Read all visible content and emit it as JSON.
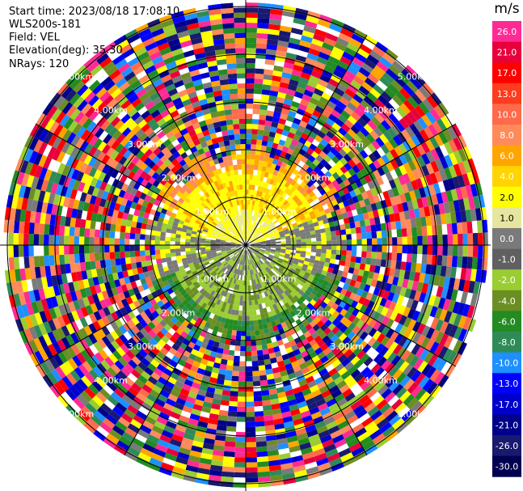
{
  "header": {
    "start_time": "Start time: 2023/08/18 17:08:10",
    "instrument": "WLS200s-181",
    "field": "Field: VEL",
    "elevation": "Elevation(deg): 35.30",
    "nrays": "NRays: 120"
  },
  "colorbar": {
    "title": "m/s",
    "ticks": [
      "26.0",
      "21.0",
      "17.0",
      "13.0",
      "10.0",
      "8.0",
      "6.0",
      "4.0",
      "2.0",
      "1.0",
      "0.0",
      "-1.0",
      "-2.0",
      "-4.0",
      "-6.0",
      "-8.0",
      "-10.0",
      "-13.0",
      "-17.0",
      "-21.0",
      "-26.0",
      "-30.0"
    ],
    "colors": [
      "#ff2a94",
      "#e8003c",
      "#ff0000",
      "#ff3c1e",
      "#ff6a4a",
      "#ff8a5a",
      "#ffa500",
      "#ffd400",
      "#ffff00",
      "#e6e6a0",
      "#7a7a7a",
      "#606060",
      "#9acd32",
      "#6b8e23",
      "#228b22",
      "#2e8b57",
      "#1e90ff",
      "#0000ff",
      "#0000cd",
      "#00008b",
      "#191970",
      "#000050"
    ]
  },
  "chart_data": {
    "type": "ppi",
    "field": "VEL",
    "units": "m/s",
    "nrays": 120,
    "elevation_deg": 35.3,
    "range_ring_labels_km": [
      "1.00km",
      "2.00km",
      "3.00km",
      "4.00km",
      "5.00km"
    ],
    "color_range": [
      -30.0,
      26.0
    ],
    "near_field_pattern": {
      "north": "positive (yellow/orange, 2 to 8 m/s)",
      "south": "negative (green, -2 to -6 m/s)",
      "center": "near zero (gray)"
    },
    "far_field": "noise (all colors)"
  }
}
